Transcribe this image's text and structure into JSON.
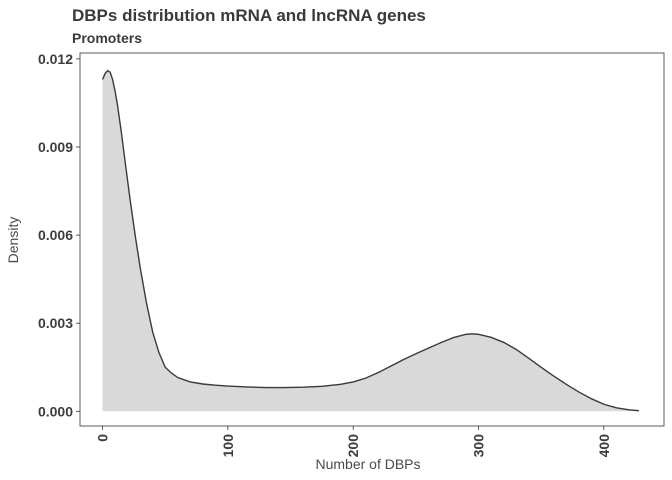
{
  "chart_data": {
    "type": "area",
    "title": "DBPs distribution mRNA and lncRNA genes",
    "subtitle": "Promoters",
    "xlabel": "Number of DBPs",
    "ylabel": "Density",
    "xlim": [
      -18,
      448
    ],
    "ylim": [
      -0.0005,
      0.0122
    ],
    "x_ticks": [
      0,
      100,
      200,
      300,
      400
    ],
    "x_tick_labels": [
      "0",
      "100",
      "200",
      "300",
      "400"
    ],
    "y_ticks": [
      0.0,
      0.003,
      0.006,
      0.009,
      0.012
    ],
    "y_tick_labels": [
      "0.000",
      "0.003",
      "0.006",
      "0.009",
      "0.012"
    ],
    "grid": false,
    "legend": "none",
    "fill_color": "#d9d9d9",
    "line_color": "#3a3a3a",
    "series": [
      {
        "x": [
          0,
          2,
          4,
          6,
          8,
          10,
          12,
          15,
          18,
          22,
          26,
          30,
          35,
          40,
          45,
          50,
          55,
          60,
          70,
          80,
          90,
          100,
          115,
          130,
          145,
          160,
          175,
          190,
          200,
          210,
          220,
          230,
          240,
          250,
          260,
          270,
          280,
          290,
          295,
          300,
          310,
          320,
          330,
          340,
          350,
          360,
          370,
          380,
          390,
          400,
          410,
          420,
          428
        ],
        "values": [
          0.0113,
          0.0115,
          0.0116,
          0.01155,
          0.0113,
          0.0109,
          0.0104,
          0.0095,
          0.0085,
          0.0072,
          0.006,
          0.0049,
          0.0037,
          0.0027,
          0.002,
          0.0015,
          0.0013,
          0.00115,
          0.001,
          0.00093,
          0.00089,
          0.00086,
          0.00083,
          0.00081,
          0.00081,
          0.00082,
          0.00085,
          0.00092,
          0.001,
          0.00113,
          0.00132,
          0.00154,
          0.00176,
          0.00196,
          0.00215,
          0.00234,
          0.00251,
          0.00262,
          0.00264,
          0.00262,
          0.00252,
          0.00235,
          0.00211,
          0.00181,
          0.0015,
          0.0012,
          0.00092,
          0.00066,
          0.00043,
          0.00024,
          0.00012,
          5e-05,
          2e-05
        ]
      }
    ]
  }
}
